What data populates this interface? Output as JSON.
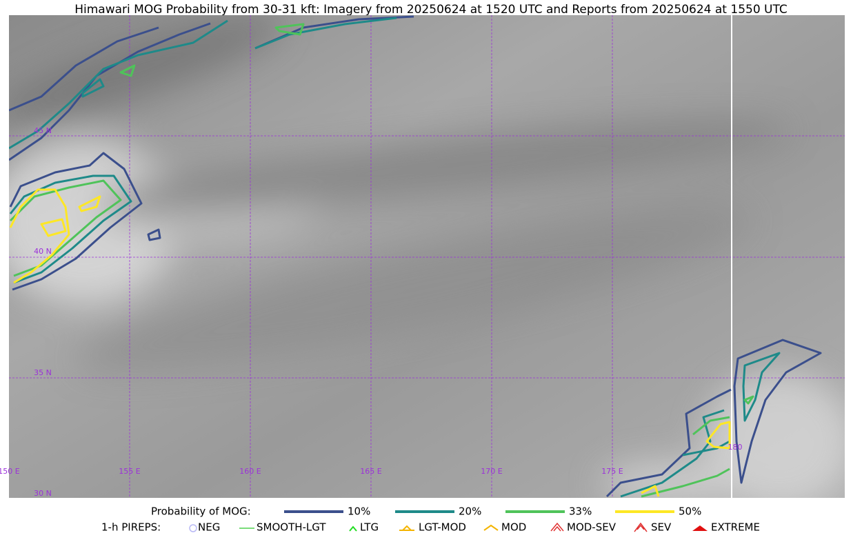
{
  "title": "Himawari MOG Probability from 30-31 kft: Imagery from 20250624 at 1520 UTC and Reports from 20250624 at 1550 UTC",
  "map": {
    "lat_labels": [
      "45 N",
      "40 N",
      "35 N",
      "30 N"
    ],
    "lon_labels": [
      "150 E",
      "155 E",
      "160 E",
      "165 E",
      "170 E",
      "175 E",
      "180"
    ]
  },
  "legend": {
    "probability": {
      "title": "Probability of MOG:",
      "items": [
        {
          "label": "10%",
          "color": "#3b4f8c"
        },
        {
          "label": "20%",
          "color": "#1e8a89"
        },
        {
          "label": "33%",
          "color": "#4fc35a"
        },
        {
          "label": "50%",
          "color": "#fde725"
        }
      ]
    },
    "pireps": {
      "title": "1-h PIREPS:",
      "items": [
        "NEG",
        "SMOOTH-LGT",
        "LTG",
        "LGT-MOD",
        "MOD",
        "MOD-SEV",
        "SEV",
        "EXTREME"
      ]
    }
  }
}
